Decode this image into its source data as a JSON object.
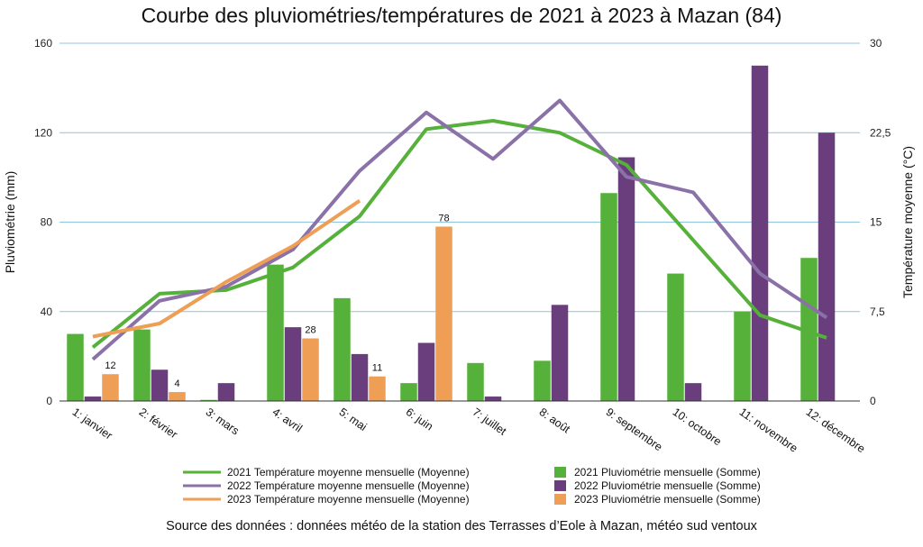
{
  "chart_data": {
    "type": "bar",
    "title": "Courbe des pluviométries/températures de 2021 à 2023 à Mazan (84)",
    "subtitle": "",
    "categories": [
      "1: janvier",
      "2: février",
      "3: mars",
      "4: avril",
      "5: mai",
      "6: juin",
      "7: juillet",
      "8: août",
      "9: septembre",
      "10: octobre",
      "11: novembre",
      "12: décembre"
    ],
    "ylabel": "Pluviométrie (mm)",
    "y2label": "Température moyenne (°C)",
    "ylim": [
      0,
      160
    ],
    "y_ticks": [
      "0",
      "40",
      "80",
      "120",
      "160"
    ],
    "y2lim": [
      0,
      30
    ],
    "y2_ticks": [
      "0",
      "7,5",
      "15",
      "22,5",
      "30"
    ],
    "grid": true,
    "legend_position": "bottom",
    "bar_series": [
      {
        "name": "2021 Pluviométrie mensuelle (Somme)",
        "color": "#56b13a",
        "values": [
          30,
          32,
          0.5,
          61,
          46,
          8,
          17,
          18,
          93,
          57,
          40,
          64
        ]
      },
      {
        "name": "2022 Pluviométrie mensuelle (Somme)",
        "color": "#6a3d7c",
        "values": [
          2,
          14,
          8,
          33,
          21,
          26,
          2,
          43,
          109,
          8,
          150,
          120
        ]
      },
      {
        "name": "2023 Pluviométrie mensuelle (Somme)",
        "color": "#ee9e55",
        "values": [
          12,
          4,
          null,
          28,
          11,
          78,
          null,
          null,
          null,
          null,
          null,
          null
        ],
        "data_labels": [
          "12",
          "4",
          "",
          "28",
          "11",
          "78",
          "",
          "",
          "",
          "",
          "",
          ""
        ]
      }
    ],
    "line_series": [
      {
        "name": "2021 Température moyenne mensuelle (Moyenne)",
        "color": "#56b13a",
        "values": [
          4.5,
          9.0,
          9.3,
          11.2,
          15.5,
          22.8,
          23.5,
          22.5,
          19.8,
          13.5,
          7.2,
          5.3
        ]
      },
      {
        "name": "2022 Température moyenne mensuelle (Moyenne)",
        "color": "#8a72a8",
        "values": [
          3.5,
          8.4,
          9.6,
          12.7,
          19.3,
          24.2,
          20.3,
          25.2,
          18.8,
          17.5,
          10.7,
          7.0
        ]
      },
      {
        "name": "2023 Température moyenne mensuelle (Moyenne)",
        "color": "#ee9e55",
        "values": [
          5.4,
          6.5,
          10.0,
          13.0,
          16.8,
          null,
          null,
          null,
          null,
          null,
          null,
          null
        ]
      }
    ]
  },
  "legend": {
    "left": [
      {
        "label": "2021 Température moyenne mensuelle (Moyenne)",
        "color": "#56b13a"
      },
      {
        "label": "2022 Température moyenne mensuelle (Moyenne)",
        "color": "#8a72a8"
      },
      {
        "label": "2023 Température moyenne mensuelle (Moyenne)",
        "color": "#ee9e55"
      }
    ],
    "right": [
      {
        "label": "2021 Pluviométrie mensuelle (Somme)",
        "color": "#56b13a"
      },
      {
        "label": "2022 Pluviométrie mensuelle (Somme)",
        "color": "#6a3d7c"
      },
      {
        "label": "2023 Pluviométrie mensuelle (Somme)",
        "color": "#ee9e55"
      }
    ]
  },
  "source": "Source des données : données météo de la station des Terrasses d’Eole à Mazan, météo sud ventoux"
}
